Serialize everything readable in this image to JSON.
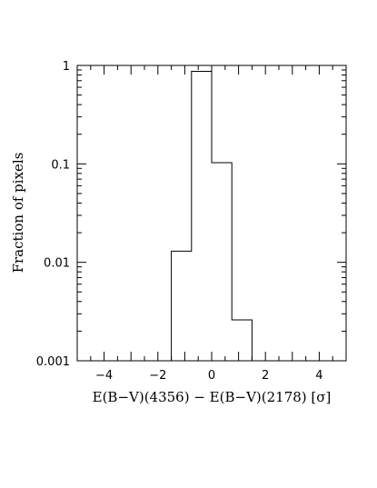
{
  "chart_data": {
    "type": "histogram",
    "title": "",
    "xlabel": "E(B−V)(4356) − E(B−V)(2178) [σ]",
    "ylabel": "Fraction of pixels",
    "xlim": [
      -5,
      5
    ],
    "ylim": [
      0.001,
      1
    ],
    "yscale": "log",
    "grid": false,
    "x_ticks": [
      -4,
      -2,
      0,
      2,
      4
    ],
    "y_ticks": [
      0.001,
      0.01,
      0.1,
      1
    ],
    "x_tick_labels": [
      "−4",
      "−2",
      "0",
      "2",
      "4"
    ],
    "y_tick_labels": [
      "0.001",
      "0.01",
      "0.1",
      "1"
    ],
    "bins": [
      {
        "x0": -1.5,
        "x1": -0.75,
        "value": 0.013
      },
      {
        "x0": -0.75,
        "x1": 0.0,
        "value": 0.87
      },
      {
        "x0": 0.0,
        "x1": 0.75,
        "value": 0.103
      },
      {
        "x0": 0.75,
        "x1": 1.5,
        "value": 0.0026
      }
    ],
    "color": "#000000"
  }
}
